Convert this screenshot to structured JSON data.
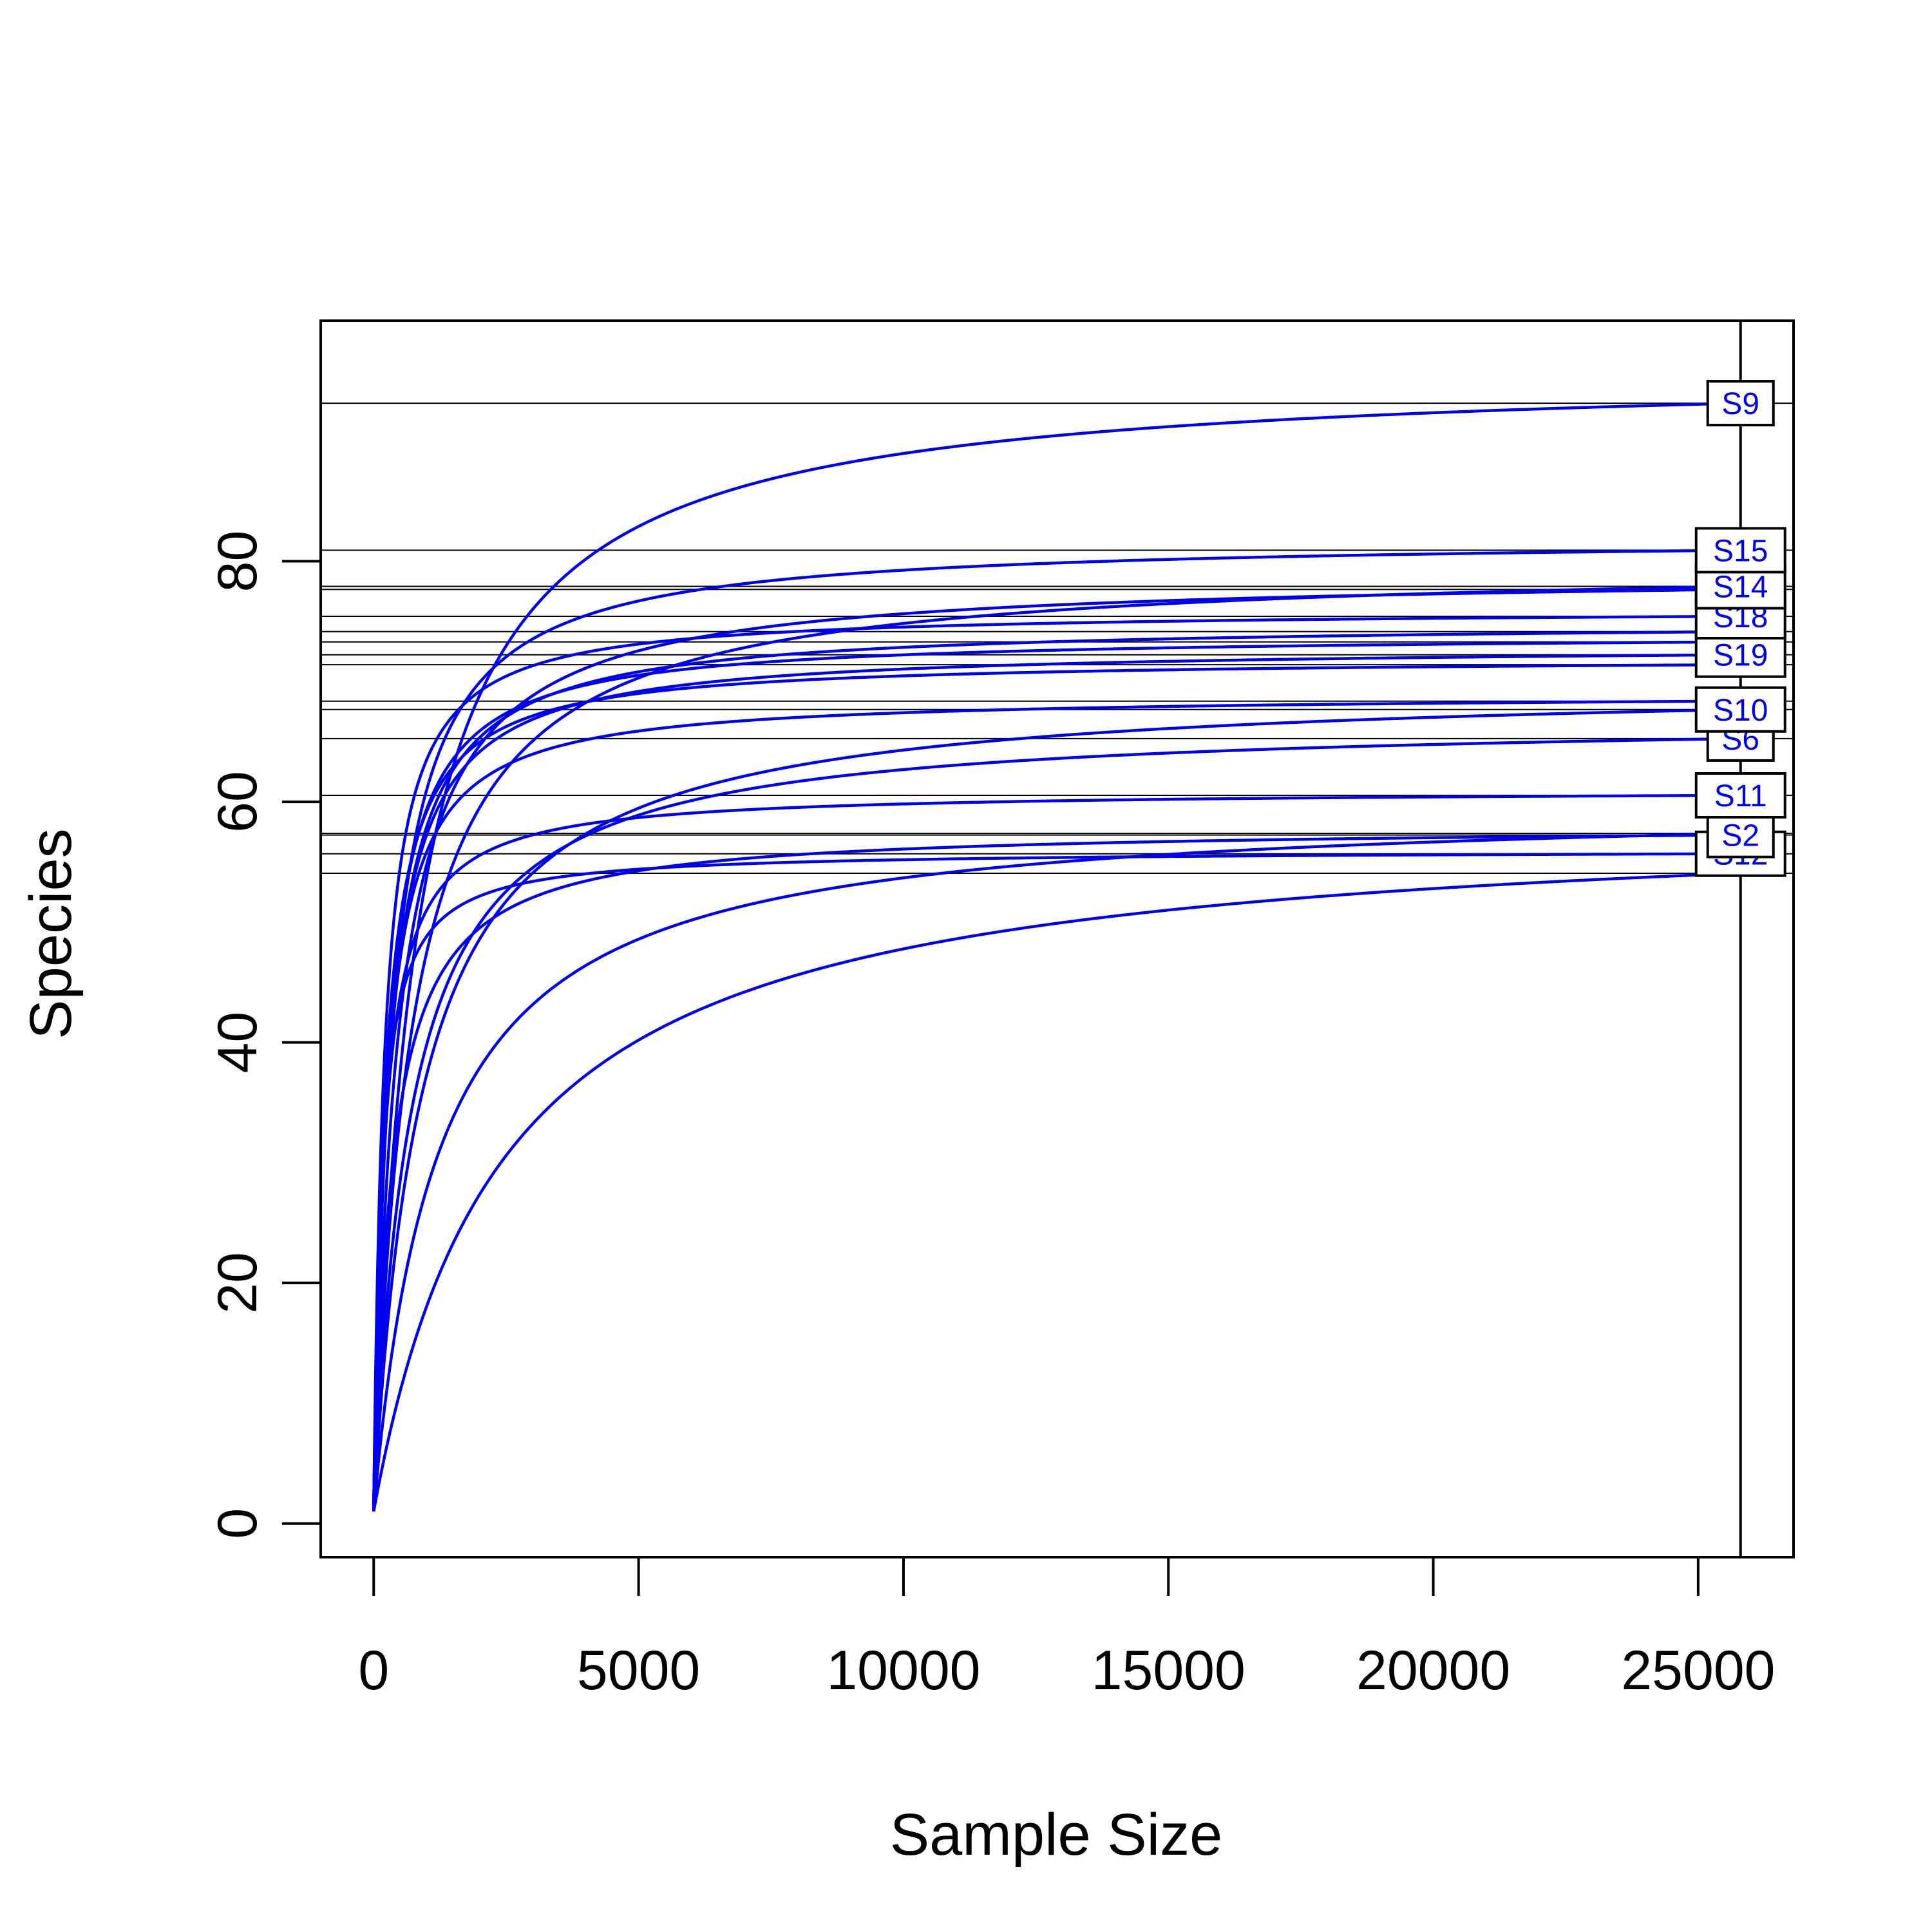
{
  "chart_data": {
    "type": "line",
    "title": "",
    "xlabel": "Sample Size",
    "ylabel": "Species",
    "xlim": [
      -1000,
      26800
    ],
    "ylim": [
      -2.8,
      100
    ],
    "x_ticks": [
      0,
      5000,
      10000,
      15000,
      20000,
      25000
    ],
    "y_ticks": [
      0,
      20,
      40,
      60,
      80
    ],
    "grid": false,
    "legend": "none",
    "vertical_line_x": 25800,
    "label_x": 25800,
    "colors": {
      "curve": "#0000ee",
      "label_text": "#0000ee",
      "reference_line": "#000000",
      "label_box_border": "#000000"
    },
    "series": [
      {
        "name": "S9",
        "max_x": 25800,
        "asymptote": 96,
        "half_saturation": 800
      },
      {
        "name": "S15",
        "max_x": 25800,
        "asymptote": 82,
        "half_saturation": 350
      },
      {
        "name": "S14",
        "max_x": 25800,
        "asymptote": 80,
        "half_saturation": 700
      },
      {
        "name": "",
        "max_x": 25800,
        "asymptote": 79,
        "half_saturation": 450
      },
      {
        "name": "S18",
        "max_x": 25800,
        "asymptote": 76,
        "half_saturation": 200
      },
      {
        "name": "",
        "max_x": 25800,
        "asymptote": 75,
        "half_saturation": 300
      },
      {
        "name": "",
        "max_x": 25800,
        "asymptote": 74,
        "half_saturation": 250
      },
      {
        "name": "S19",
        "max_x": 25800,
        "asymptote": 73,
        "half_saturation": 280
      },
      {
        "name": "",
        "max_x": 25800,
        "asymptote": 72,
        "half_saturation": 220
      },
      {
        "name": "S10",
        "max_x": 25800,
        "asymptote": 70,
        "half_saturation": 900
      },
      {
        "name": "",
        "max_x": 25800,
        "asymptote": 69,
        "half_saturation": 240
      },
      {
        "name": "S6",
        "max_x": 25800,
        "asymptote": 67,
        "half_saturation": 700
      },
      {
        "name": "S11",
        "max_x": 25800,
        "asymptote": 61,
        "half_saturation": 200
      },
      {
        "name": "",
        "max_x": 25800,
        "asymptote": 60,
        "half_saturation": 1200
      },
      {
        "name": "S2",
        "max_x": 25800,
        "asymptote": 58,
        "half_saturation": 350
      },
      {
        "name": "S12",
        "max_x": 25800,
        "asymptote": 56,
        "half_saturation": 150
      },
      {
        "name": "",
        "max_x": 25800,
        "asymptote": 59,
        "half_saturation": 2400
      }
    ],
    "labeled_series_order": [
      "S9",
      "S15",
      "S14",
      "S18",
      "S19",
      "S10",
      "S6",
      "S11",
      "S2",
      "S12"
    ]
  }
}
